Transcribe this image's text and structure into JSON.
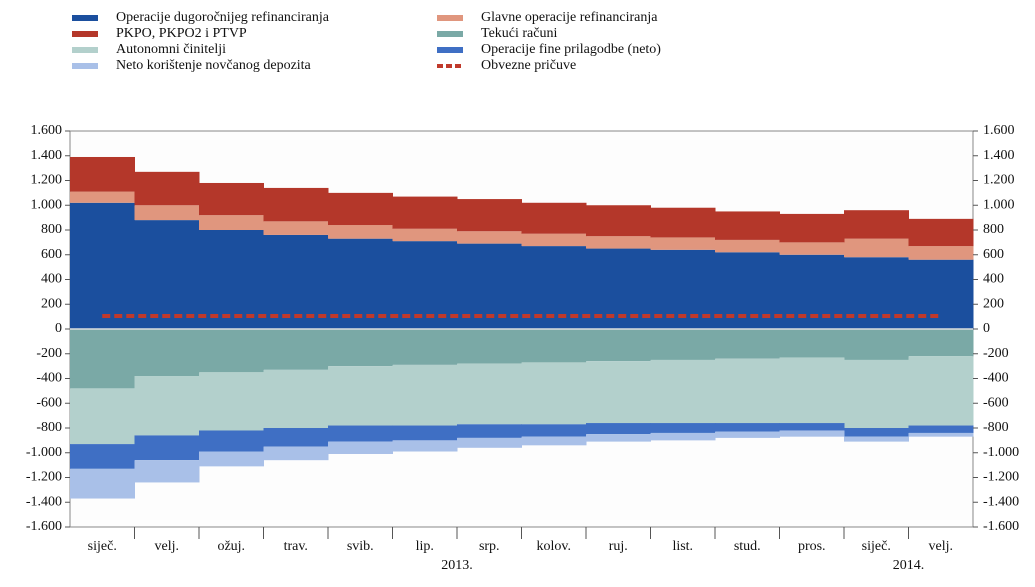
{
  "chart_data": {
    "type": "stacked-area",
    "categories": [
      "siječ.",
      "velj.",
      "ožuj.",
      "trav.",
      "svib.",
      "lip.",
      "srp.",
      "kolov.",
      "ruj.",
      "list.",
      "stud.",
      "pros.",
      "siječ.",
      "velj."
    ],
    "year_labels": [
      "2013.",
      "2014."
    ],
    "series": [
      {
        "name": "Operacije dugoročnijeg refinanciranja",
        "color": "#1b4f9e",
        "values": [
          1020,
          880,
          800,
          760,
          730,
          710,
          690,
          670,
          650,
          640,
          620,
          600,
          580,
          560
        ]
      },
      {
        "name": "Glavne operacije refinanciranja",
        "color": "#e0967e",
        "values": [
          90,
          120,
          120,
          110,
          110,
          100,
          100,
          100,
          100,
          100,
          100,
          100,
          150,
          110
        ]
      },
      {
        "name": "PKPO, PKPO2 i PTVP",
        "color": "#b4372a",
        "values": [
          280,
          270,
          260,
          270,
          260,
          260,
          260,
          250,
          250,
          240,
          230,
          230,
          230,
          220
        ]
      },
      {
        "name": "Tekući računi",
        "color": "#7aa9a6",
        "values": [
          -480,
          -380,
          -350,
          -330,
          -300,
          -290,
          -280,
          -270,
          -260,
          -250,
          -240,
          -230,
          -250,
          -220
        ]
      },
      {
        "name": "Autonomni činitelji",
        "color": "#b3d0cc",
        "values": [
          -450,
          -480,
          -470,
          -470,
          -480,
          -490,
          -490,
          -500,
          -500,
          -510,
          -520,
          -530,
          -550,
          -560
        ]
      },
      {
        "name": "Operacije fine prilagodbe (neto)",
        "color": "#3f6fc4",
        "values": [
          -200,
          -200,
          -170,
          -150,
          -130,
          -120,
          -110,
          -100,
          -90,
          -80,
          -70,
          -60,
          -70,
          -60
        ]
      },
      {
        "name": "Neto korištenje novčanog depozita",
        "color": "#a9c0e8",
        "values": [
          -240,
          -180,
          -120,
          -110,
          -100,
          -90,
          -80,
          -70,
          -60,
          -60,
          -50,
          -50,
          -40,
          -30
        ]
      },
      {
        "name": "Obvezne pričuve",
        "color": "#c0392b",
        "style": "dashed-line",
        "values": [
          105,
          105,
          105,
          105,
          105,
          105,
          105,
          105,
          105,
          105,
          105,
          105,
          105,
          105
        ]
      }
    ],
    "ylim": [
      -1600,
      1600
    ],
    "yticks": [
      {
        "value": 1600,
        "label": "1.600"
      },
      {
        "value": 1400,
        "label": "1.400"
      },
      {
        "value": 1200,
        "label": "1.200"
      },
      {
        "value": 1000,
        "label": "1.000"
      },
      800,
      600,
      400,
      200,
      0,
      -200,
      -400,
      -600,
      -800,
      {
        "value": -1000,
        "label": "-1.000"
      },
      {
        "value": -1200,
        "label": "-1.200"
      },
      {
        "value": -1400,
        "label": "-1.400"
      },
      {
        "value": -1600,
        "label": "-1.600"
      }
    ]
  }
}
